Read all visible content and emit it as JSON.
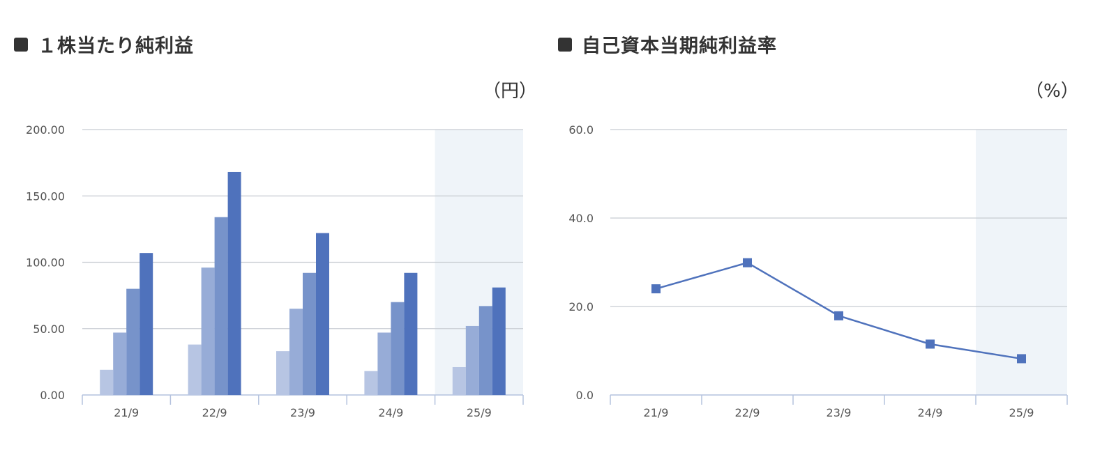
{
  "colors": {
    "forecast_band": "#eff4f9",
    "grid": "#c8ccd2",
    "axis": "#b4c2de",
    "bar_shades": [
      "#b7c5e3",
      "#97acd7",
      "#7793ca",
      "#4f72bc"
    ],
    "line": "#4f72bc"
  },
  "chart_data": [
    {
      "type": "bar",
      "title": "１株当たり純利益",
      "unit_label": "（円）",
      "categories": [
        "21/9",
        "22/9",
        "23/9",
        "24/9",
        "25/9"
      ],
      "series": [
        {
          "values": [
            19,
            38,
            33,
            18,
            21
          ]
        },
        {
          "values": [
            47,
            96,
            65,
            47,
            52
          ]
        },
        {
          "values": [
            80,
            134,
            92,
            70,
            67
          ]
        },
        {
          "values": [
            107,
            168,
            122,
            92,
            81
          ]
        }
      ],
      "ylim": [
        0,
        200
      ],
      "yticks": [
        "0.00",
        "50.00",
        "100.00",
        "150.00",
        "200.00"
      ],
      "highlight_category": "25/9",
      "grid": true
    },
    {
      "type": "line",
      "title": "自己資本当期純利益率",
      "unit_label": "（%）",
      "categories": [
        "21/9",
        "22/9",
        "23/9",
        "24/9",
        "25/9"
      ],
      "series": [
        {
          "values": [
            24.0,
            29.9,
            17.9,
            11.5,
            8.2
          ]
        }
      ],
      "ylim": [
        0,
        60
      ],
      "yticks": [
        "0.0",
        "20.0",
        "40.0",
        "60.0"
      ],
      "highlight_category": "25/9",
      "grid": true,
      "marker": "square"
    }
  ]
}
